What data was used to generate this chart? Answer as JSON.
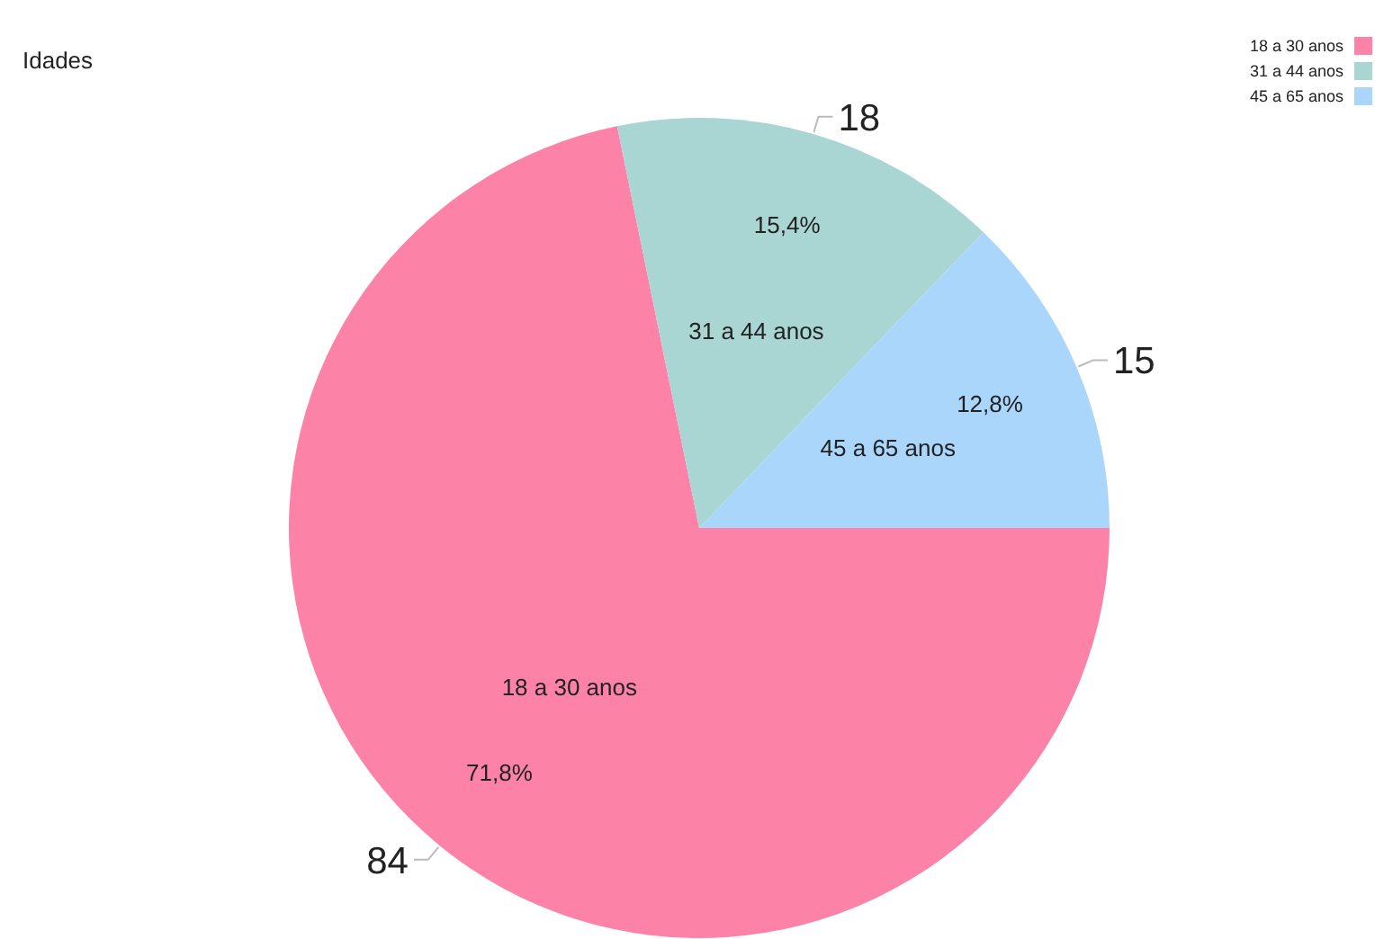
{
  "chart_data": {
    "type": "pie",
    "title": "Idades",
    "categories": [
      "18 a 30 anos",
      "31 a 44 anos",
      "45 a 65 anos"
    ],
    "values": [
      84,
      18,
      15
    ],
    "colors": [
      "#fc82a8",
      "#a9d5d3",
      "#aad6fb"
    ],
    "annotations": [
      "71,8%",
      "15,4%",
      "12,8%"
    ],
    "data_labels": true,
    "legend": "top right"
  }
}
